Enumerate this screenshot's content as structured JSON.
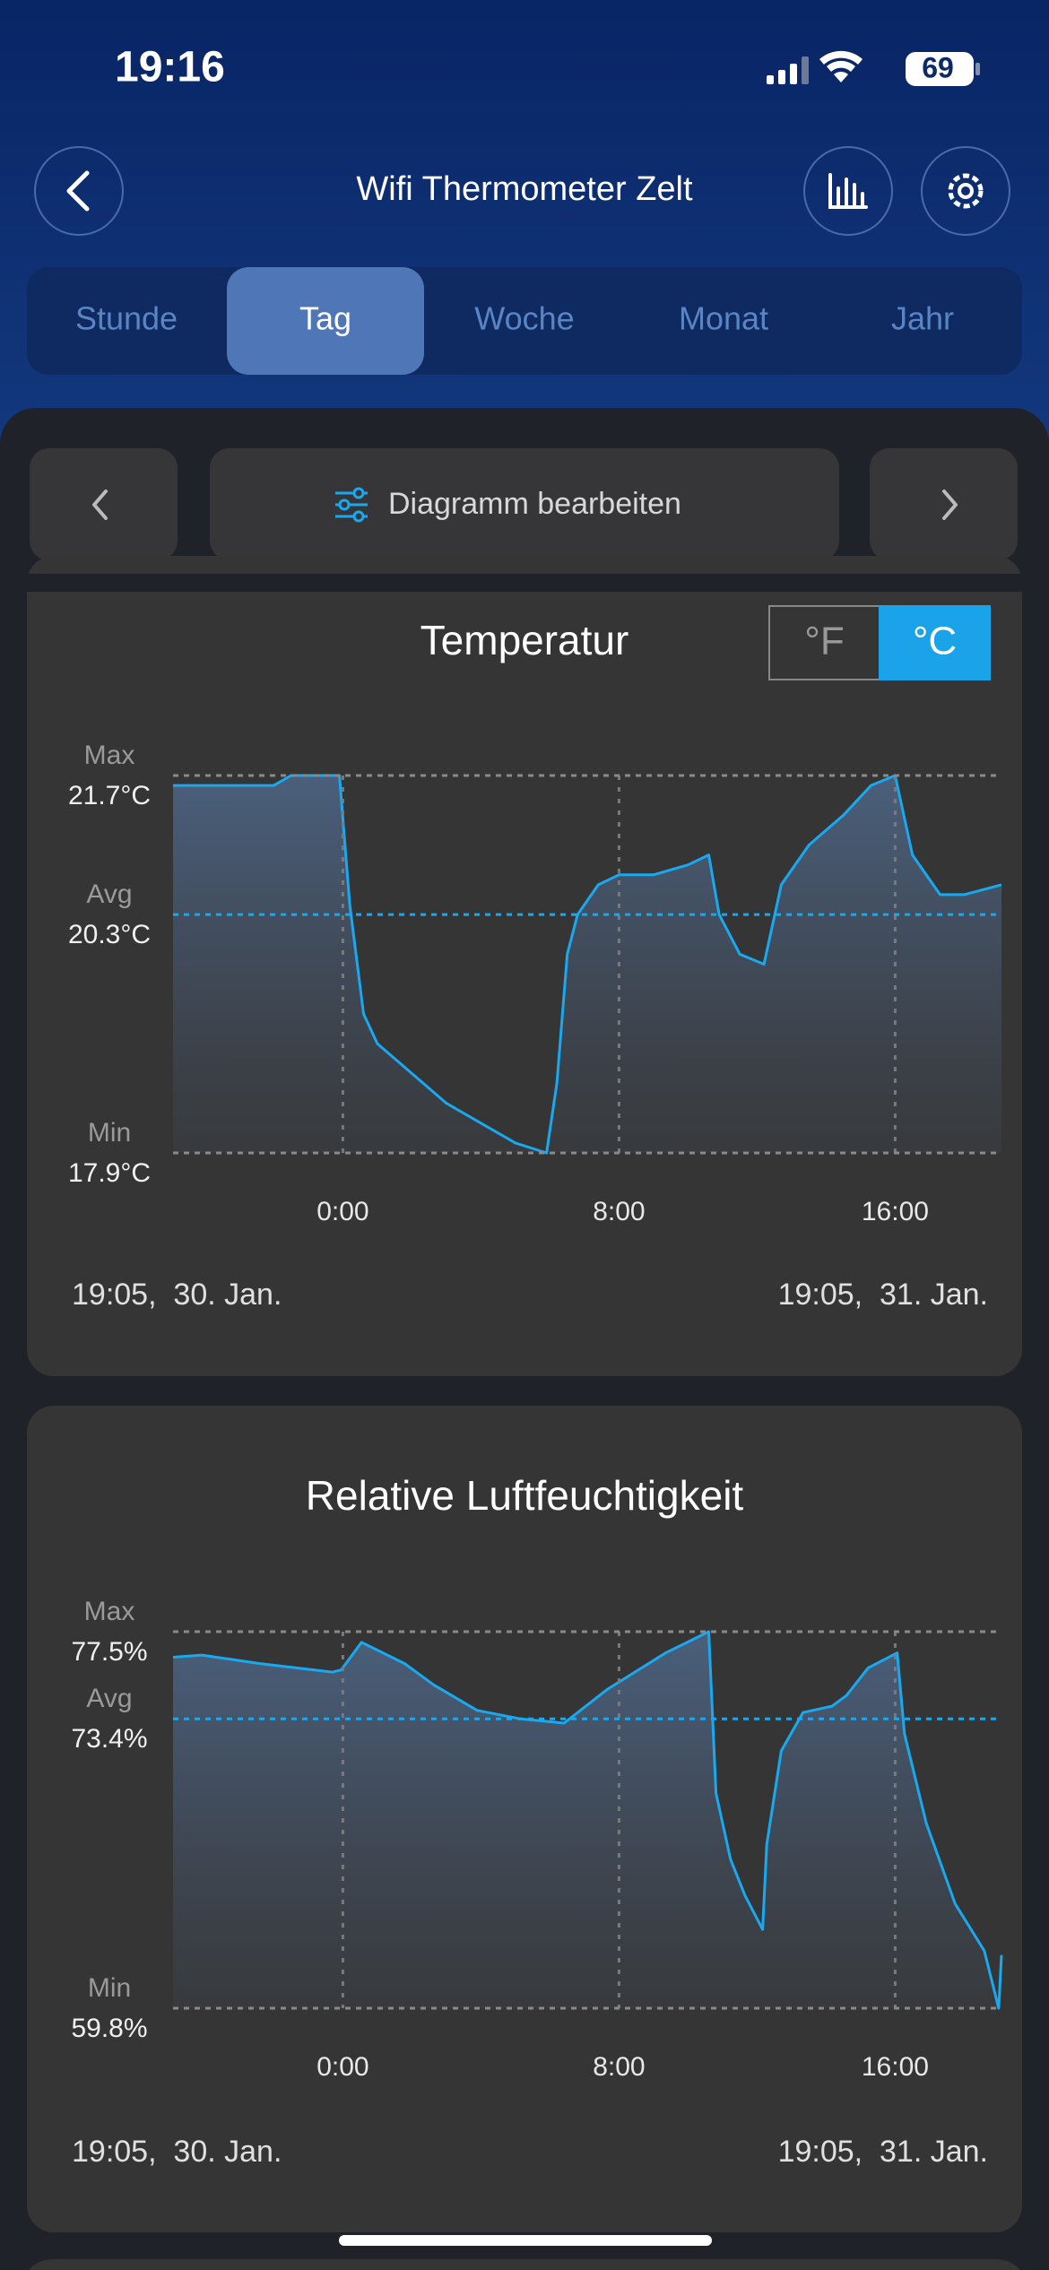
{
  "status_bar": {
    "time": "19:16",
    "battery": "69"
  },
  "header": {
    "title": "Wifi Thermometer Zelt"
  },
  "tabs": [
    {
      "label": "Stunde",
      "selected": false
    },
    {
      "label": "Tag",
      "selected": true
    },
    {
      "label": "Woche",
      "selected": false
    },
    {
      "label": "Monat",
      "selected": false
    },
    {
      "label": "Jahr",
      "selected": false
    }
  ],
  "toolbar": {
    "edit": "Diagramm bearbeiten"
  },
  "chart_data": [
    {
      "type": "line",
      "title": "Temperatur",
      "units": [
        {
          "label": "°F",
          "selected": false
        },
        {
          "label": "°C",
          "selected": true
        }
      ],
      "x": [
        -4.92,
        -4,
        -3,
        -2,
        -1.5,
        -0.1,
        0.2,
        0.6,
        1,
        2,
        3,
        4,
        5,
        5.9,
        6.2,
        6.5,
        6.8,
        7.4,
        8,
        9,
        10,
        10.6,
        10.9,
        11.5,
        12.2,
        12.7,
        13.5,
        14.5,
        15.3,
        16,
        16.5,
        17.3,
        18,
        19.08
      ],
      "series": [
        {
          "color": "#19a9f0",
          "values": [
            21.6,
            21.6,
            21.6,
            21.6,
            21.7,
            21.7,
            20.4,
            19.3,
            19.0,
            18.7,
            18.4,
            18.2,
            18.0,
            17.9,
            18.6,
            19.9,
            20.3,
            20.6,
            20.7,
            20.7,
            20.8,
            20.9,
            20.3,
            19.9,
            19.8,
            20.6,
            21.0,
            21.3,
            21.6,
            21.7,
            20.9,
            20.5,
            20.5,
            20.6
          ]
        }
      ],
      "xlim": [
        -4.92,
        19.08
      ],
      "xticks": [
        {
          "value": 0,
          "label": "0:00"
        },
        {
          "value": 8,
          "label": "8:00"
        },
        {
          "value": 16,
          "label": "16:00"
        }
      ],
      "ylim": [
        17.9,
        21.7
      ],
      "reference_lines": [
        {
          "name": "Max",
          "value": 21.7,
          "label": "21.7°C",
          "color": "#8a8a8a"
        },
        {
          "name": "Avg",
          "value": 20.3,
          "label": "20.3°C",
          "color": "#19a9f0"
        },
        {
          "name": "Min",
          "value": 17.9,
          "label": "17.9°C",
          "color": "#8a8a8a"
        }
      ],
      "range_labels": [
        "19:05,  30. Jan.",
        "19:05,  31. Jan."
      ]
    },
    {
      "type": "line",
      "title": "Relative Luftfeuchtigkeit",
      "x": [
        -4.92,
        -4.08,
        -2.4,
        -0.3,
        -0.05,
        0.54,
        1.79,
        2.63,
        3.89,
        5.15,
        6.41,
        7.67,
        9.35,
        10.6,
        10.81,
        11.23,
        11.65,
        12.16,
        12.28,
        12.7,
        13.33,
        14.17,
        14.59,
        15.22,
        16.06,
        16.27,
        16.9,
        17.74,
        18.58,
        19.0,
        19.08
      ],
      "series": [
        {
          "color": "#19a9f0",
          "values": [
            76.3,
            76.4,
            76.0,
            75.6,
            75.7,
            77.0,
            76.0,
            75.0,
            73.8,
            73.4,
            73.2,
            74.8,
            76.5,
            77.5,
            69.9,
            66.8,
            65.1,
            63.5,
            67.5,
            71.9,
            73.7,
            74.0,
            74.5,
            75.8,
            76.5,
            72.7,
            68.5,
            64.7,
            62.5,
            59.8,
            62.3
          ]
        }
      ],
      "xlim": [
        -4.92,
        19.08
      ],
      "xticks": [
        {
          "value": 0,
          "label": "0:00"
        },
        {
          "value": 8,
          "label": "8:00"
        },
        {
          "value": 16,
          "label": "16:00"
        }
      ],
      "ylim": [
        59.8,
        77.5
      ],
      "reference_lines": [
        {
          "name": "Max",
          "value": 77.5,
          "label": "77.5%",
          "color": "#8a8a8a"
        },
        {
          "name": "Avg",
          "value": 73.4,
          "label": "73.4%",
          "color": "#19a9f0"
        },
        {
          "name": "Min",
          "value": 59.8,
          "label": "59.8%",
          "color": "#8a8a8a"
        }
      ],
      "range_labels": [
        "19:05,  30. Jan.",
        "19:05,  31. Jan."
      ]
    }
  ]
}
